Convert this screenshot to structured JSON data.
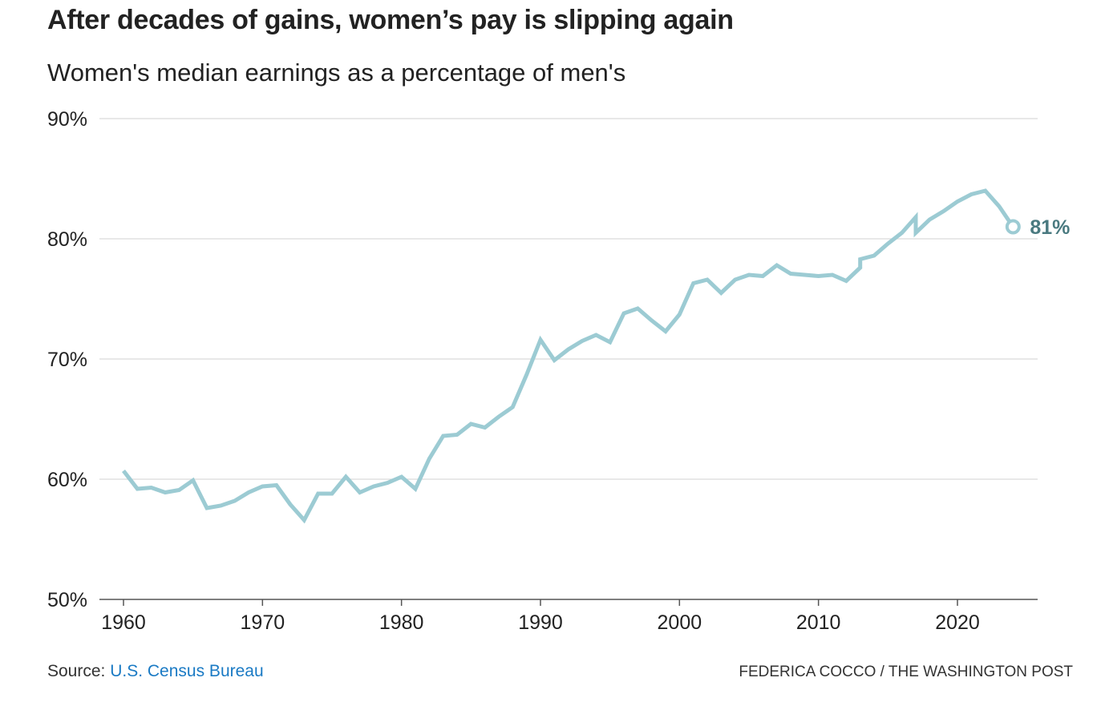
{
  "header": {
    "title": "After decades of gains, women’s pay is slipping again",
    "subtitle": "Women's median earnings as a percentage of men's"
  },
  "footer": {
    "source_prefix": "Source: ",
    "source_link": "U.S. Census Bureau",
    "credit": "FEDERICA COCCO / THE WASHINGTON POST"
  },
  "colors": {
    "line": "#9ccbd3",
    "end_label": "#4a7a80",
    "grid": "#d9d9d9",
    "axis": "#555555",
    "link": "#1a7ac4"
  },
  "chart_data": {
    "type": "line",
    "title": "After decades of gains, women’s pay is slipping again",
    "subtitle": "Women's median earnings as a percentage of men's",
    "xlabel": "",
    "ylabel": "",
    "xlim": [
      1958,
      2026
    ],
    "ylim": [
      50,
      90
    ],
    "x_ticks": [
      1960,
      1970,
      1980,
      1990,
      2000,
      2010,
      2020
    ],
    "x_tick_labels": [
      "1960",
      "1970",
      "1980",
      "1990",
      "2000",
      "2010",
      "2020"
    ],
    "y_ticks": [
      50,
      60,
      70,
      80,
      90
    ],
    "y_tick_labels": [
      "50%",
      "60%",
      "70%",
      "80%",
      "90%"
    ],
    "grid": "horizontal",
    "end_annotation": "81%",
    "series": [
      {
        "x": [
          1960,
          1961,
          1962,
          1963,
          1964,
          1965,
          1966,
          1967,
          1968,
          1969,
          1970,
          1971,
          1972,
          1973,
          1974,
          1975,
          1976,
          1977,
          1978,
          1979,
          1980,
          1981,
          1982,
          1983,
          1984,
          1985,
          1986,
          1987,
          1988,
          1989,
          1990,
          1991,
          1992,
          1993,
          1994,
          1995,
          1996,
          1997,
          1998,
          1999,
          2000,
          2001,
          2002,
          2003,
          2004,
          2005,
          2006,
          2007,
          2008,
          2009,
          2010,
          2011,
          2012,
          2013,
          2013,
          2014,
          2015,
          2016,
          2017,
          2017,
          2018,
          2019,
          2020,
          2021,
          2022,
          2023,
          2024
        ],
        "values": [
          60.7,
          59.2,
          59.3,
          58.9,
          59.1,
          59.9,
          57.6,
          57.8,
          58.2,
          58.9,
          59.4,
          59.5,
          57.9,
          56.6,
          58.8,
          58.8,
          60.2,
          58.9,
          59.4,
          59.7,
          60.2,
          59.2,
          61.7,
          63.6,
          63.7,
          64.6,
          64.3,
          65.2,
          66.0,
          68.7,
          71.6,
          69.9,
          70.8,
          71.5,
          72.0,
          71.4,
          73.8,
          74.2,
          73.2,
          72.3,
          73.7,
          76.3,
          76.6,
          75.5,
          76.6,
          77.0,
          76.9,
          77.8,
          77.1,
          77.0,
          76.9,
          77.0,
          76.5,
          77.6,
          78.3,
          78.6,
          79.6,
          80.5,
          81.8,
          80.5,
          81.6,
          82.3,
          83.1,
          83.7,
          84.0,
          82.7,
          81.0
        ]
      }
    ]
  }
}
